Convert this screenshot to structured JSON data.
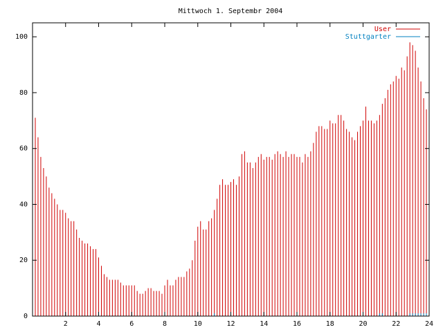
{
  "chart_data": {
    "type": "impulse",
    "title": "Mittwoch 1. Septembr 2004",
    "x": [
      0,
      0.167,
      0.333,
      0.5,
      0.667,
      0.833,
      1,
      1.167,
      1.333,
      1.5,
      1.667,
      1.833,
      2,
      2.167,
      2.333,
      2.5,
      2.667,
      2.833,
      3,
      3.167,
      3.333,
      3.5,
      3.667,
      3.833,
      4,
      4.167,
      4.333,
      4.5,
      4.667,
      4.833,
      5,
      5.167,
      5.333,
      5.5,
      5.667,
      5.833,
      6,
      6.167,
      6.333,
      6.5,
      6.667,
      6.833,
      7,
      7.167,
      7.333,
      7.5,
      7.667,
      7.833,
      8,
      8.167,
      8.333,
      8.5,
      8.667,
      8.833,
      9,
      9.167,
      9.333,
      9.5,
      9.667,
      9.833,
      10,
      10.167,
      10.333,
      10.5,
      10.667,
      10.833,
      11,
      11.167,
      11.333,
      11.5,
      11.667,
      11.833,
      12,
      12.167,
      12.333,
      12.5,
      12.667,
      12.833,
      13,
      13.167,
      13.333,
      13.5,
      13.667,
      13.833,
      14,
      14.167,
      14.333,
      14.5,
      14.667,
      14.833,
      15,
      15.167,
      15.333,
      15.5,
      15.667,
      15.833,
      16,
      16.167,
      16.333,
      16.5,
      16.667,
      16.833,
      17,
      17.167,
      17.333,
      17.5,
      17.667,
      17.833,
      18,
      18.167,
      18.333,
      18.5,
      18.667,
      18.833,
      19,
      19.167,
      19.333,
      19.5,
      19.667,
      19.833,
      20,
      20.167,
      20.333,
      20.5,
      20.667,
      20.833,
      21,
      21.167,
      21.333,
      21.5,
      21.667,
      21.833,
      22,
      22.167,
      22.333,
      22.5,
      22.667,
      22.833,
      23,
      23.167,
      23.333,
      23.5,
      23.667,
      23.833,
      24
    ],
    "series": [
      {
        "name": "User",
        "color": "#d00000",
        "values": [
          71,
          71,
          64,
          57,
          53,
          50,
          46,
          44,
          42,
          40,
          38,
          38,
          37,
          35,
          34,
          34,
          31,
          28,
          27,
          26,
          26,
          25,
          24,
          24,
          21,
          18,
          15,
          14,
          13,
          13,
          13,
          13,
          12,
          11,
          11,
          11,
          11,
          11,
          9,
          8,
          8,
          9,
          10,
          10,
          9,
          9,
          9,
          8,
          11,
          13,
          11,
          11,
          13,
          14,
          14,
          14,
          16,
          17,
          20,
          27,
          32,
          34,
          31,
          31,
          34,
          35,
          38,
          42,
          47,
          49,
          47,
          47,
          48,
          49,
          47,
          50,
          58,
          59,
          55,
          55,
          53,
          55,
          57,
          58,
          56,
          57,
          57,
          56,
          58,
          59,
          58,
          57,
          59,
          57,
          58,
          58,
          57,
          57,
          55,
          58,
          57,
          59,
          62,
          66,
          68,
          68,
          67,
          67,
          70,
          69,
          69,
          72,
          72,
          70,
          67,
          66,
          64,
          63,
          66,
          68,
          70,
          75,
          70,
          70,
          69,
          70,
          72,
          76,
          78,
          81,
          83,
          84,
          86,
          85,
          89,
          88,
          93,
          98,
          97,
          95,
          89,
          84,
          78,
          74,
          70
        ]
      },
      {
        "name": "Stuttgarter",
        "color": "#0080c0",
        "values": [
          0,
          0,
          0,
          0,
          0,
          0,
          0,
          0,
          0,
          0,
          0,
          0,
          0,
          0,
          0,
          0,
          0,
          0,
          0,
          0,
          0,
          0,
          0,
          0,
          0,
          0,
          0,
          0,
          0,
          0,
          0,
          0,
          0,
          0,
          0,
          0,
          0,
          0,
          0,
          0,
          0,
          0,
          0,
          0,
          0,
          0,
          0,
          0,
          0,
          0,
          0,
          0,
          0,
          0,
          0,
          0,
          0,
          0,
          0,
          0,
          0,
          0,
          0,
          0,
          0,
          0,
          1,
          0,
          0,
          0,
          0,
          0,
          0,
          0,
          0,
          0,
          0,
          0,
          0,
          0,
          0,
          0,
          0,
          0,
          0,
          0,
          0,
          0,
          0,
          0,
          0,
          0,
          0,
          0,
          0,
          0,
          0,
          0,
          0,
          0,
          0,
          0,
          0,
          0,
          0,
          0,
          0,
          0,
          0,
          0,
          0,
          0,
          0,
          0,
          0,
          0,
          0,
          0,
          0,
          0,
          0,
          0,
          0,
          0,
          0,
          0,
          1,
          1,
          0,
          0,
          0,
          0,
          0,
          0,
          0,
          0,
          0,
          1,
          1,
          1,
          1,
          1,
          1,
          1,
          0
        ]
      }
    ],
    "xlim": [
      0,
      24
    ],
    "xticks": [
      2,
      4,
      6,
      8,
      10,
      12,
      14,
      16,
      18,
      20,
      22,
      24
    ],
    "ylim": [
      0,
      105
    ],
    "yticks": [
      0,
      20,
      40,
      60,
      80,
      100
    ],
    "legend": "top-right"
  }
}
